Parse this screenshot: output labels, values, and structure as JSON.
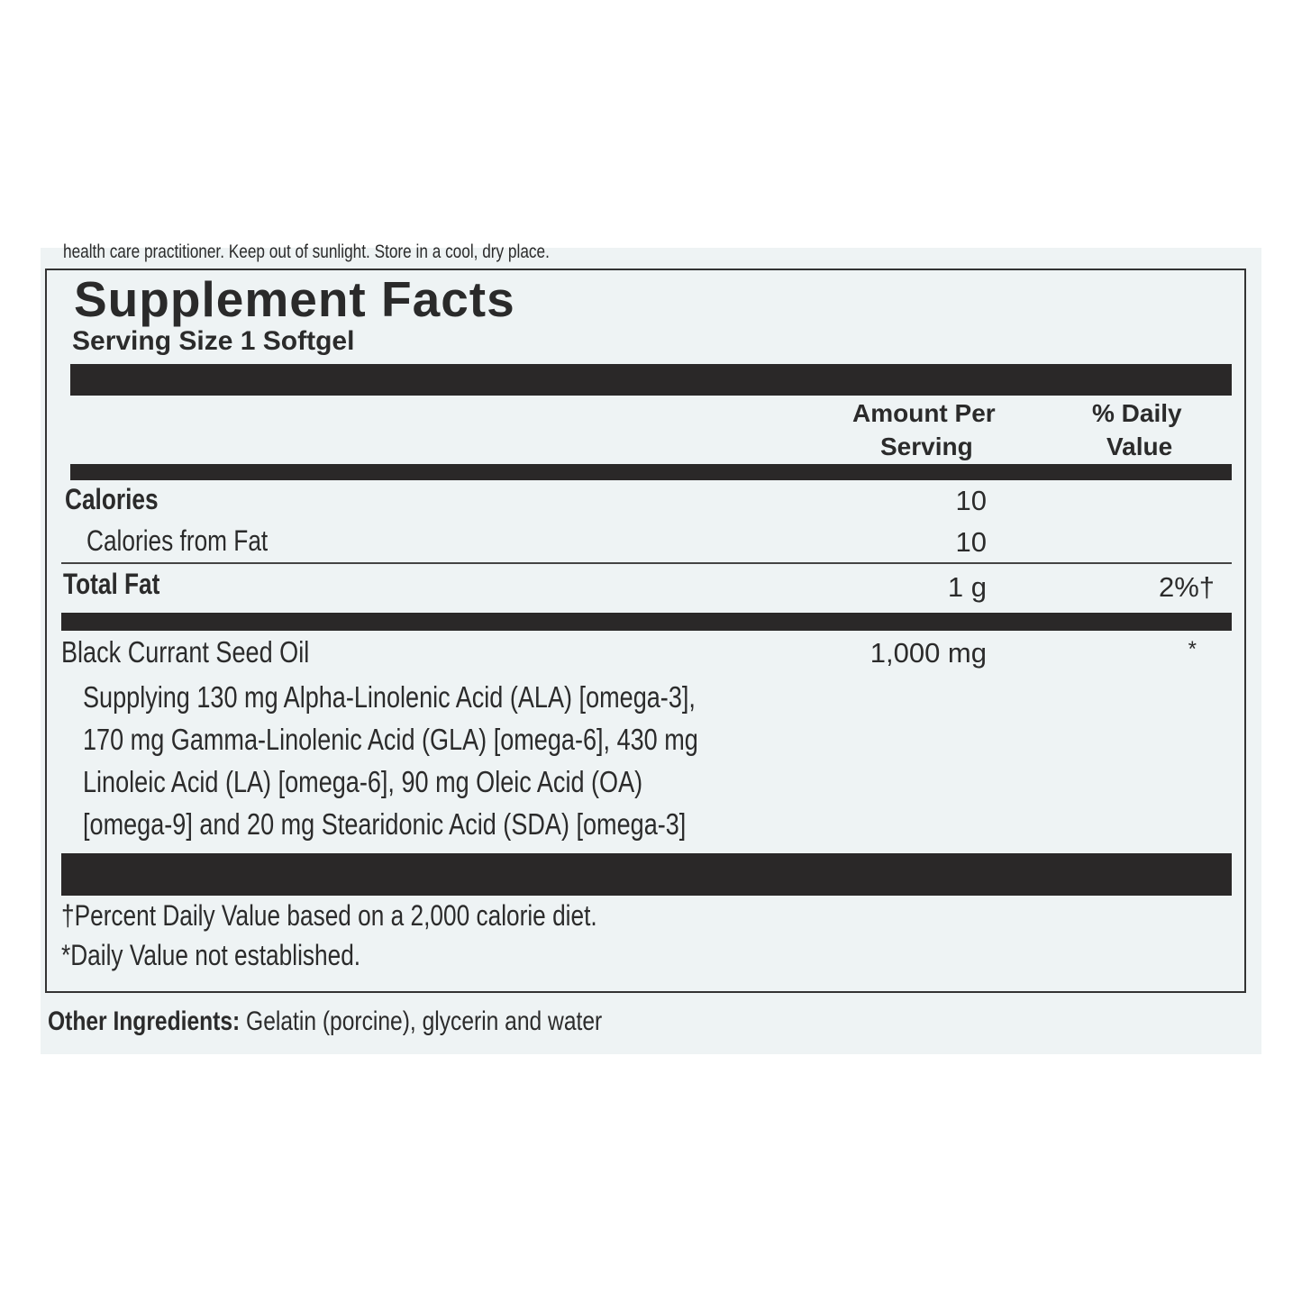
{
  "warning_tail": "health care practitioner. Keep out of sunlight. Store in a cool, dry place.",
  "title": "Supplement Facts",
  "serving_size": "Serving Size 1 Softgel",
  "headers": {
    "amount_1": "Amount Per",
    "amount_2": "Serving",
    "dv_1": "% Daily",
    "dv_2": "Value"
  },
  "rows": [
    {
      "name": "Calories",
      "amount": "10",
      "dv": ""
    },
    {
      "name": "Calories from Fat",
      "amount": "10",
      "dv": ""
    },
    {
      "name": "Total Fat",
      "amount": "1 g",
      "dv": "2%†"
    },
    {
      "name": "Black Currant Seed Oil",
      "amount": "1,000 mg",
      "dv": "*"
    }
  ],
  "supplying_lines": [
    "Supplying 130 mg Alpha-Linolenic Acid (ALA) [omega-3],",
    "170 mg Gamma-Linolenic Acid (GLA) [omega-6], 430 mg",
    "Linoleic Acid (LA) [omega-6], 90 mg Oleic Acid (OA)",
    "[omega-9] and 20 mg Stearidonic Acid (SDA) [omega-3]"
  ],
  "footnotes": [
    "†Percent Daily Value based on a 2,000 calorie diet.",
    "*Daily Value not established."
  ],
  "other_ingredients": {
    "label": "Other Ingredients:",
    "text": " Gelatin (porcine), glycerin and water"
  }
}
